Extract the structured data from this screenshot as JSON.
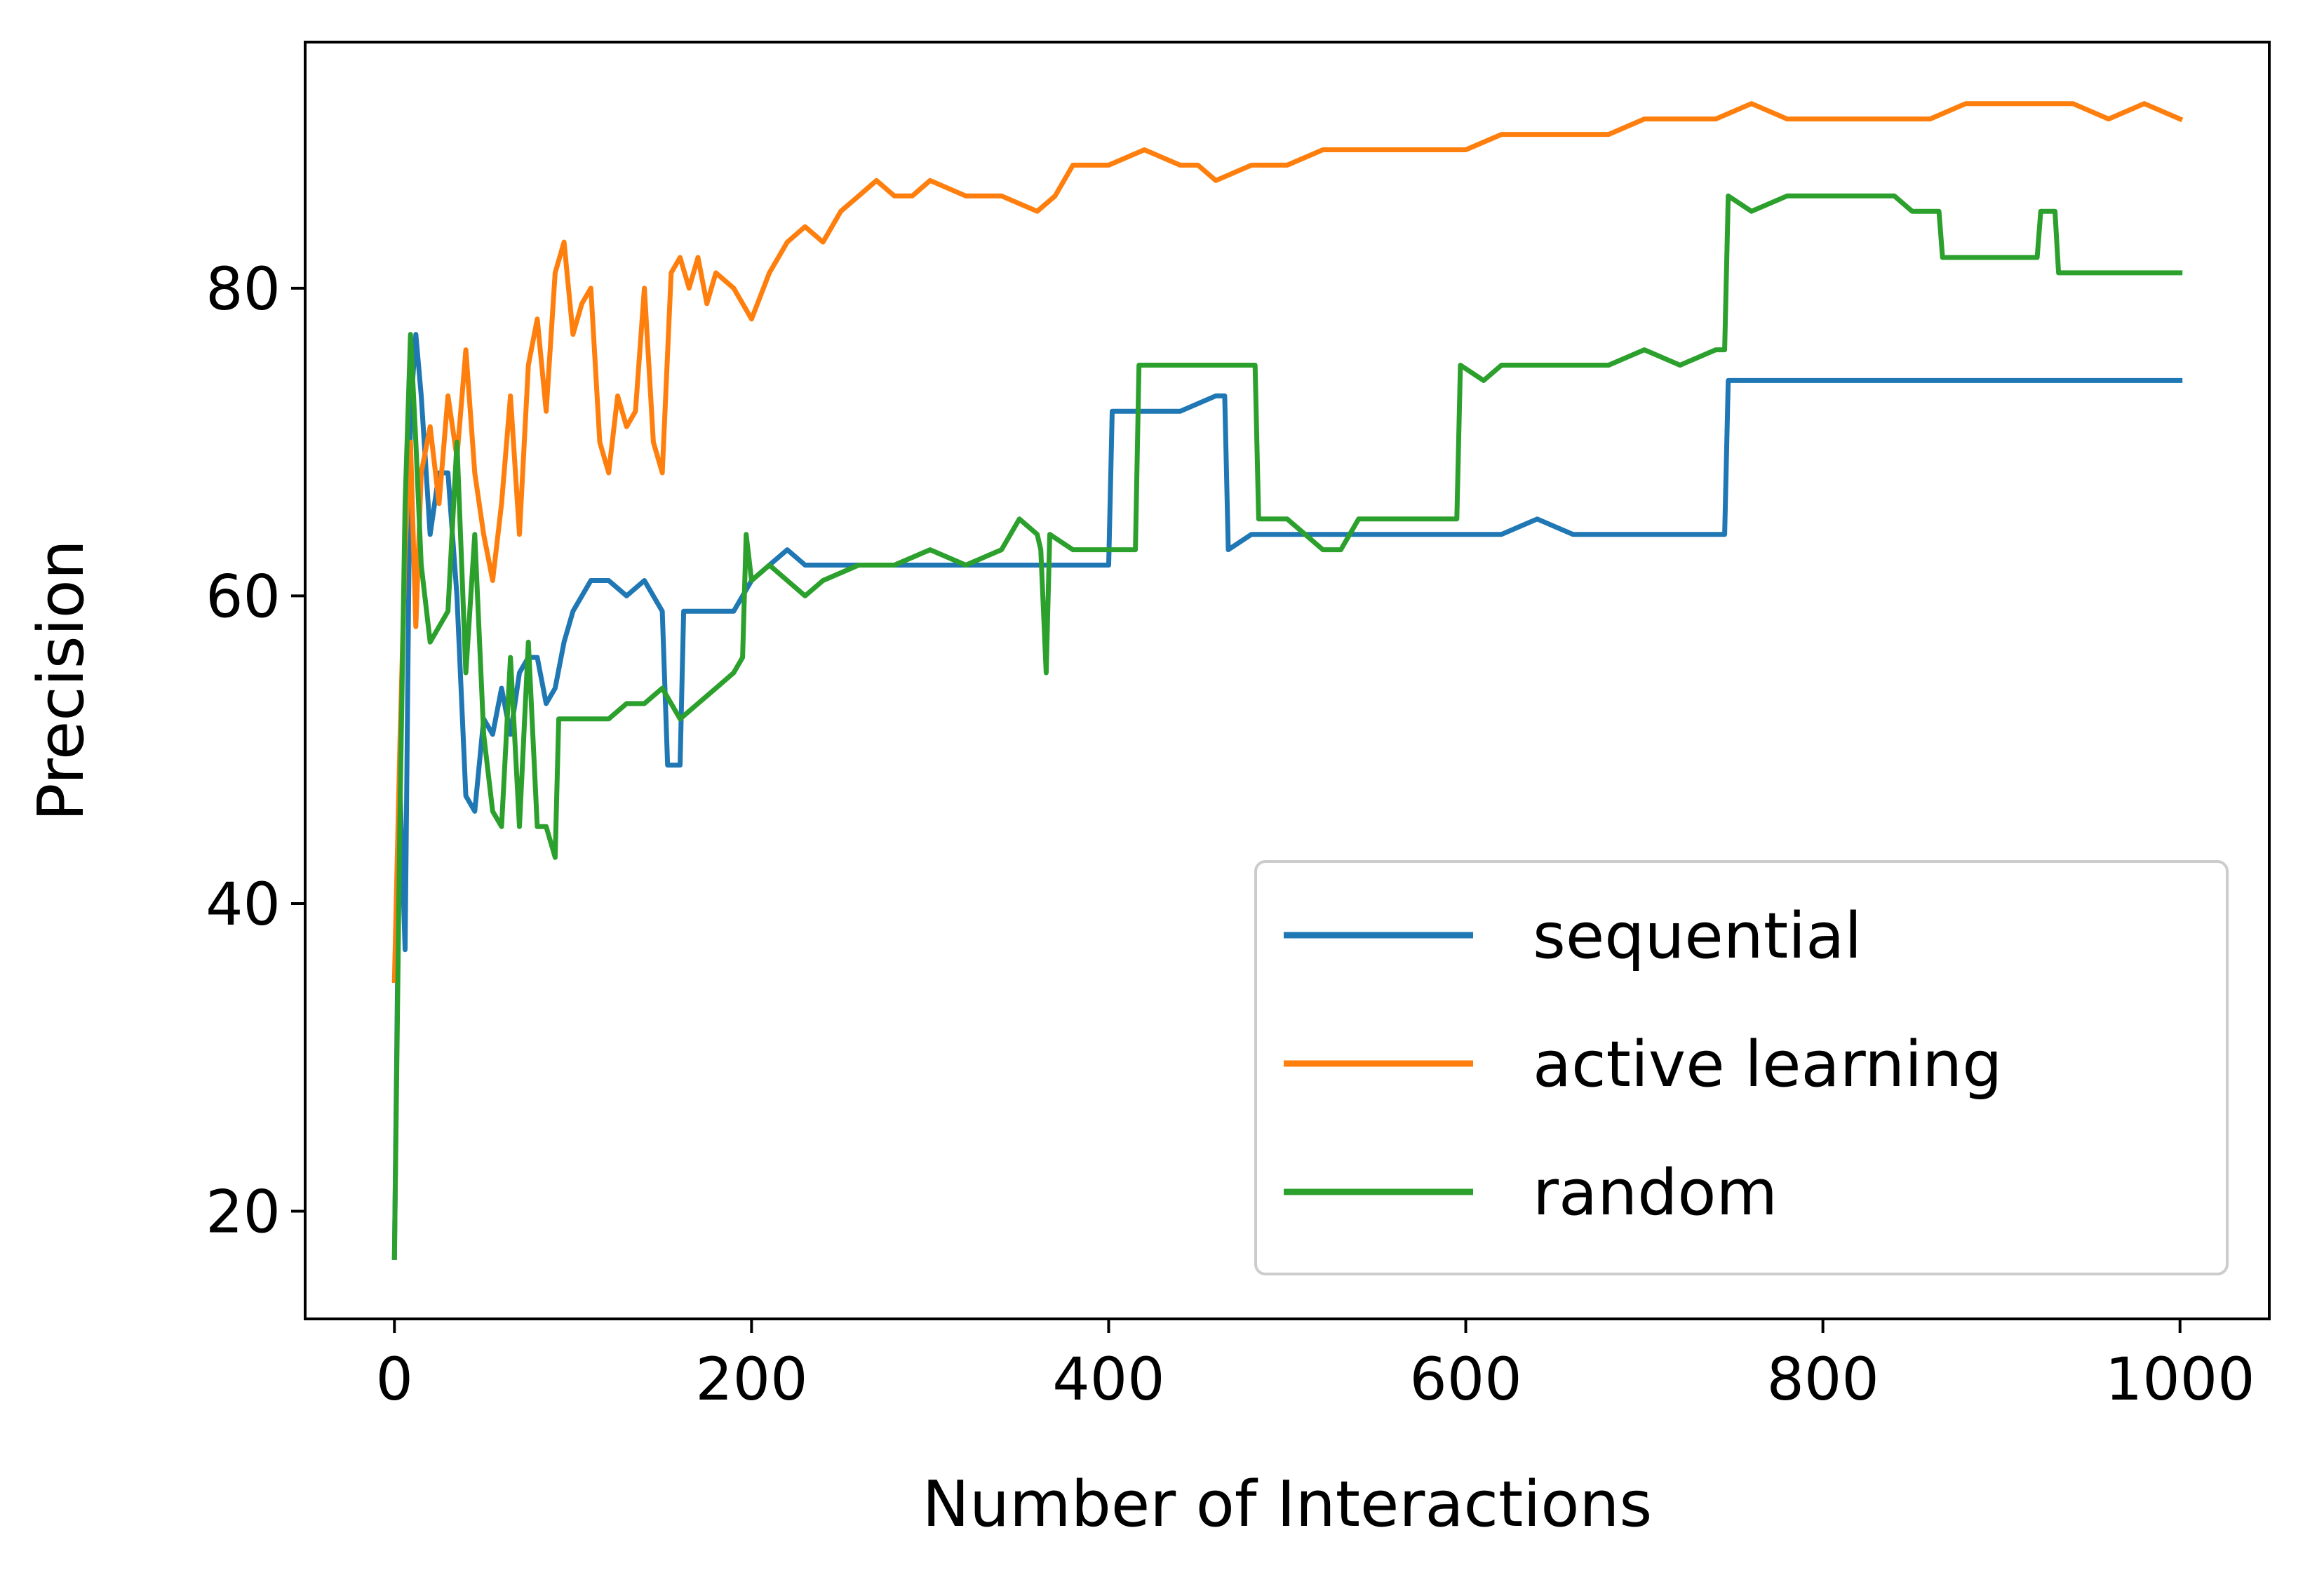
{
  "chart_data": {
    "type": "line",
    "title": "",
    "xlabel": "Number of Interactions",
    "ylabel": "Precision",
    "xlim": [
      -50,
      1050
    ],
    "ylim": [
      13,
      96
    ],
    "xticks": [
      0,
      200,
      400,
      600,
      800,
      1000
    ],
    "yticks": [
      20,
      40,
      60,
      80
    ],
    "grid": false,
    "legend_position": "lower-right",
    "colors": {
      "sequential": "#1f77b4",
      "active learning": "#ff7f0e",
      "random": "#2ca02c"
    },
    "series": [
      {
        "name": "sequential",
        "color": "#1f77b4",
        "points": [
          [
            0,
            17
          ],
          [
            3,
            48
          ],
          [
            6,
            37
          ],
          [
            9,
            72
          ],
          [
            12,
            77
          ],
          [
            15,
            73
          ],
          [
            20,
            64
          ],
          [
            25,
            68
          ],
          [
            30,
            68
          ],
          [
            35,
            60
          ],
          [
            40,
            47
          ],
          [
            45,
            46
          ],
          [
            50,
            52
          ],
          [
            55,
            51
          ],
          [
            60,
            54
          ],
          [
            65,
            51
          ],
          [
            70,
            55
          ],
          [
            75,
            56
          ],
          [
            80,
            56
          ],
          [
            85,
            53
          ],
          [
            90,
            54
          ],
          [
            95,
            57
          ],
          [
            100,
            59
          ],
          [
            110,
            61
          ],
          [
            120,
            61
          ],
          [
            130,
            60
          ],
          [
            140,
            61
          ],
          [
            150,
            59
          ],
          [
            153,
            49
          ],
          [
            160,
            49
          ],
          [
            162,
            59
          ],
          [
            170,
            59
          ],
          [
            190,
            59
          ],
          [
            200,
            61
          ],
          [
            210,
            62
          ],
          [
            220,
            63
          ],
          [
            230,
            62
          ],
          [
            240,
            62
          ],
          [
            260,
            62
          ],
          [
            280,
            62
          ],
          [
            300,
            62
          ],
          [
            320,
            62
          ],
          [
            340,
            62
          ],
          [
            360,
            62
          ],
          [
            380,
            62
          ],
          [
            395,
            62
          ],
          [
            400,
            62
          ],
          [
            402,
            72
          ],
          [
            420,
            72
          ],
          [
            440,
            72
          ],
          [
            460,
            73
          ],
          [
            465,
            73
          ],
          [
            467,
            63
          ],
          [
            480,
            64
          ],
          [
            500,
            64
          ],
          [
            520,
            64
          ],
          [
            540,
            64
          ],
          [
            560,
            64
          ],
          [
            580,
            64
          ],
          [
            600,
            64
          ],
          [
            620,
            64
          ],
          [
            640,
            65
          ],
          [
            660,
            64
          ],
          [
            680,
            64
          ],
          [
            700,
            64
          ],
          [
            720,
            64
          ],
          [
            745,
            64
          ],
          [
            747,
            74
          ],
          [
            760,
            74
          ],
          [
            780,
            74
          ],
          [
            800,
            74
          ],
          [
            820,
            74
          ],
          [
            840,
            74
          ],
          [
            860,
            74
          ],
          [
            880,
            74
          ],
          [
            900,
            74
          ],
          [
            920,
            74
          ],
          [
            940,
            74
          ],
          [
            960,
            74
          ],
          [
            980,
            74
          ],
          [
            1000,
            74
          ]
        ]
      },
      {
        "name": "active learning",
        "color": "#ff7f0e",
        "points": [
          [
            0,
            35
          ],
          [
            3,
            50
          ],
          [
            6,
            63
          ],
          [
            9,
            70
          ],
          [
            12,
            58
          ],
          [
            15,
            68
          ],
          [
            20,
            71
          ],
          [
            25,
            66
          ],
          [
            30,
            73
          ],
          [
            35,
            69
          ],
          [
            40,
            76
          ],
          [
            45,
            68
          ],
          [
            50,
            64
          ],
          [
            55,
            61
          ],
          [
            60,
            66
          ],
          [
            65,
            73
          ],
          [
            70,
            64
          ],
          [
            75,
            75
          ],
          [
            80,
            78
          ],
          [
            85,
            72
          ],
          [
            90,
            81
          ],
          [
            95,
            83
          ],
          [
            100,
            77
          ],
          [
            105,
            79
          ],
          [
            110,
            80
          ],
          [
            115,
            70
          ],
          [
            120,
            68
          ],
          [
            125,
            73
          ],
          [
            130,
            71
          ],
          [
            135,
            72
          ],
          [
            140,
            80
          ],
          [
            145,
            70
          ],
          [
            150,
            68
          ],
          [
            155,
            81
          ],
          [
            160,
            82
          ],
          [
            165,
            80
          ],
          [
            170,
            82
          ],
          [
            175,
            79
          ],
          [
            180,
            81
          ],
          [
            190,
            80
          ],
          [
            200,
            78
          ],
          [
            210,
            81
          ],
          [
            220,
            83
          ],
          [
            230,
            84
          ],
          [
            240,
            83
          ],
          [
            250,
            85
          ],
          [
            260,
            86
          ],
          [
            270,
            87
          ],
          [
            280,
            86
          ],
          [
            290,
            86
          ],
          [
            300,
            87
          ],
          [
            320,
            86
          ],
          [
            340,
            86
          ],
          [
            360,
            85
          ],
          [
            370,
            86
          ],
          [
            380,
            88
          ],
          [
            400,
            88
          ],
          [
            420,
            89
          ],
          [
            440,
            88
          ],
          [
            450,
            88
          ],
          [
            460,
            87
          ],
          [
            480,
            88
          ],
          [
            500,
            88
          ],
          [
            520,
            89
          ],
          [
            540,
            89
          ],
          [
            560,
            89
          ],
          [
            580,
            89
          ],
          [
            600,
            89
          ],
          [
            620,
            90
          ],
          [
            640,
            90
          ],
          [
            660,
            90
          ],
          [
            680,
            90
          ],
          [
            700,
            91
          ],
          [
            720,
            91
          ],
          [
            740,
            91
          ],
          [
            760,
            92
          ],
          [
            780,
            91
          ],
          [
            800,
            91
          ],
          [
            820,
            91
          ],
          [
            840,
            91
          ],
          [
            860,
            91
          ],
          [
            880,
            92
          ],
          [
            900,
            92
          ],
          [
            920,
            92
          ],
          [
            940,
            92
          ],
          [
            960,
            91
          ],
          [
            980,
            92
          ],
          [
            1000,
            91
          ]
        ]
      },
      {
        "name": "random",
        "color": "#2ca02c",
        "points": [
          [
            0,
            17
          ],
          [
            3,
            45
          ],
          [
            6,
            66
          ],
          [
            9,
            77
          ],
          [
            12,
            70
          ],
          [
            15,
            62
          ],
          [
            20,
            57
          ],
          [
            25,
            58
          ],
          [
            30,
            59
          ],
          [
            35,
            70
          ],
          [
            40,
            55
          ],
          [
            45,
            64
          ],
          [
            50,
            51
          ],
          [
            55,
            46
          ],
          [
            60,
            45
          ],
          [
            65,
            56
          ],
          [
            70,
            45
          ],
          [
            75,
            57
          ],
          [
            80,
            45
          ],
          [
            85,
            45
          ],
          [
            90,
            43
          ],
          [
            92,
            52
          ],
          [
            100,
            52
          ],
          [
            110,
            52
          ],
          [
            120,
            52
          ],
          [
            130,
            53
          ],
          [
            140,
            53
          ],
          [
            150,
            54
          ],
          [
            160,
            52
          ],
          [
            170,
            53
          ],
          [
            180,
            54
          ],
          [
            190,
            55
          ],
          [
            195,
            56
          ],
          [
            197,
            64
          ],
          [
            200,
            61
          ],
          [
            210,
            62
          ],
          [
            220,
            61
          ],
          [
            230,
            60
          ],
          [
            240,
            61
          ],
          [
            260,
            62
          ],
          [
            280,
            62
          ],
          [
            300,
            63
          ],
          [
            320,
            62
          ],
          [
            340,
            63
          ],
          [
            350,
            65
          ],
          [
            360,
            64
          ],
          [
            362,
            63
          ],
          [
            365,
            55
          ],
          [
            367,
            64
          ],
          [
            380,
            63
          ],
          [
            400,
            63
          ],
          [
            415,
            63
          ],
          [
            417,
            75
          ],
          [
            430,
            75
          ],
          [
            440,
            75
          ],
          [
            460,
            75
          ],
          [
            470,
            75
          ],
          [
            482,
            75
          ],
          [
            484,
            65
          ],
          [
            500,
            65
          ],
          [
            510,
            64
          ],
          [
            520,
            63
          ],
          [
            530,
            63
          ],
          [
            540,
            65
          ],
          [
            560,
            65
          ],
          [
            580,
            65
          ],
          [
            595,
            65
          ],
          [
            597,
            75
          ],
          [
            610,
            74
          ],
          [
            620,
            75
          ],
          [
            640,
            75
          ],
          [
            660,
            75
          ],
          [
            680,
            75
          ],
          [
            700,
            76
          ],
          [
            720,
            75
          ],
          [
            740,
            76
          ],
          [
            745,
            76
          ],
          [
            747,
            86
          ],
          [
            760,
            85
          ],
          [
            780,
            86
          ],
          [
            800,
            86
          ],
          [
            820,
            86
          ],
          [
            840,
            86
          ],
          [
            850,
            85
          ],
          [
            860,
            85
          ],
          [
            865,
            85
          ],
          [
            867,
            82
          ],
          [
            880,
            82
          ],
          [
            900,
            82
          ],
          [
            920,
            82
          ],
          [
            922,
            85
          ],
          [
            930,
            85
          ],
          [
            932,
            81
          ],
          [
            950,
            81
          ],
          [
            970,
            81
          ],
          [
            990,
            81
          ],
          [
            1000,
            81
          ]
        ]
      }
    ]
  }
}
